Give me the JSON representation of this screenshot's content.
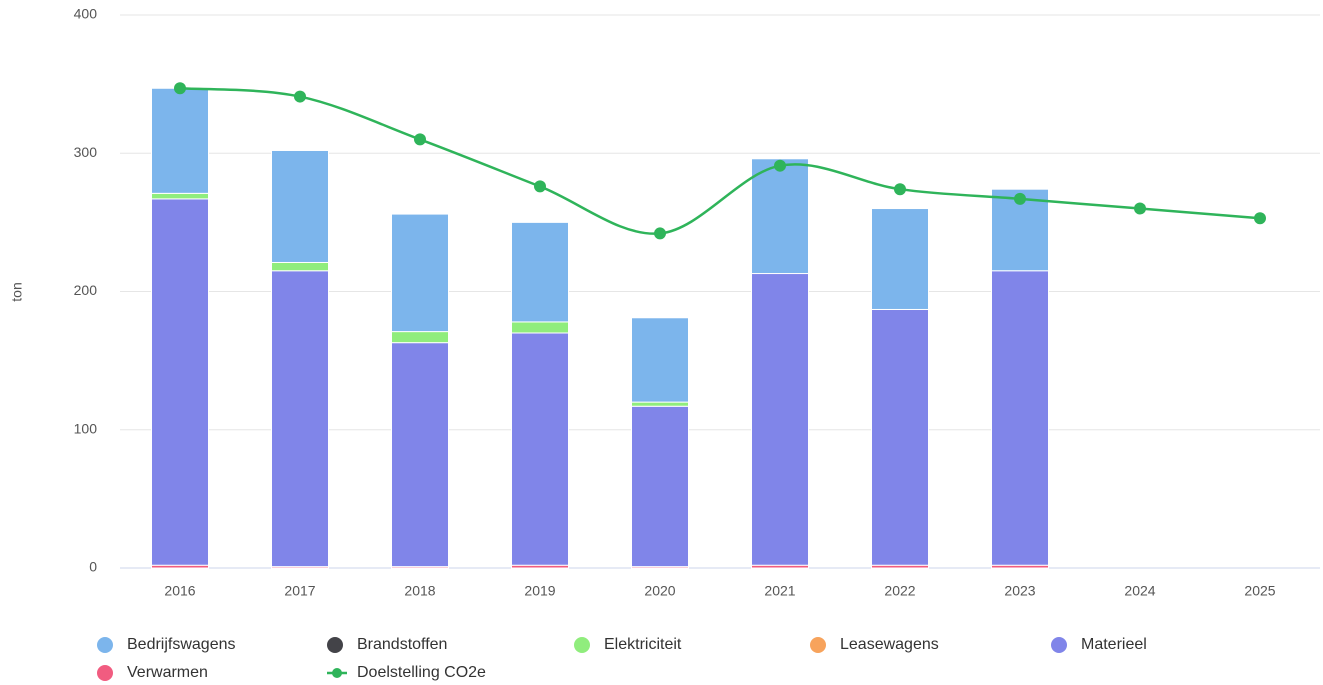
{
  "chart_data": {
    "type": "bar",
    "stacked": true,
    "y_label": "ton",
    "categories": [
      "2016",
      "2017",
      "2018",
      "2019",
      "2020",
      "2021",
      "2022",
      "2023",
      "2024",
      "2025"
    ],
    "series": [
      {
        "name": "Bedrijfswagens",
        "color": "#7cb5ec",
        "values": [
          76,
          81,
          85,
          72,
          61,
          83,
          73,
          59,
          null,
          null
        ]
      },
      {
        "name": "Brandstoffen",
        "color": "#434348",
        "values": [
          0,
          0,
          0,
          0,
          0,
          0,
          0,
          0,
          null,
          null
        ]
      },
      {
        "name": "Elektriciteit",
        "color": "#90ed7d",
        "values": [
          4,
          6,
          8,
          8,
          3,
          0,
          0,
          0,
          null,
          null
        ]
      },
      {
        "name": "Leasewagens",
        "color": "#f7a35c",
        "values": [
          0,
          0,
          0,
          0,
          0,
          0,
          0,
          0,
          null,
          null
        ]
      },
      {
        "name": "Materieel",
        "color": "#8085e9",
        "values": [
          265,
          214,
          162,
          168,
          116,
          211,
          185,
          213,
          null,
          null
        ]
      },
      {
        "name": "Verwarmen",
        "color": "#f15c80",
        "values": [
          2,
          1,
          1,
          2,
          1,
          2,
          2,
          2,
          null,
          null
        ]
      },
      {
        "name": "Doelstelling CO2e",
        "type": "line",
        "color": "#2fb45a",
        "values": [
          347,
          341,
          310,
          276,
          242,
          291,
          274,
          267,
          260,
          253
        ]
      }
    ],
    "ylim": [
      0,
      400
    ],
    "yticks": [
      0,
      100,
      200,
      300,
      400
    ],
    "grid": true,
    "legend": "bottom"
  }
}
